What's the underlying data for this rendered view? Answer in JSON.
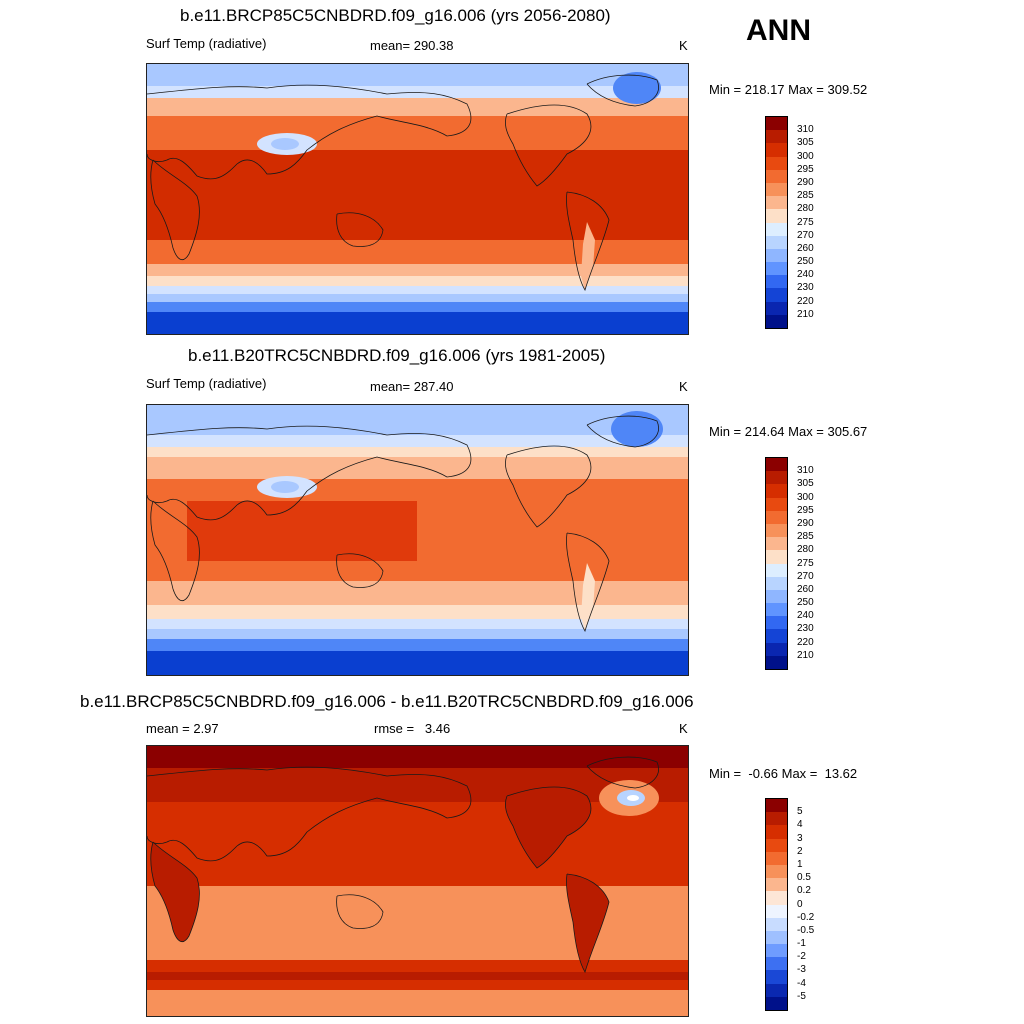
{
  "season": "ANN",
  "panels": [
    {
      "title": "b.e11.BRCP85C5CNBDRD.f09_g16.006 (yrs 2056-2080)",
      "variable": "Surf Temp (radiative)",
      "stat1": "mean= 290.38",
      "stat2": "",
      "units": "K",
      "minmax": "Min = 218.17 Max = 309.52",
      "colorbar": {
        "labels": [
          "310",
          "305",
          "300",
          "295",
          "290",
          "285",
          "280",
          "275",
          "270",
          "260",
          "250",
          "240",
          "230",
          "220",
          "210"
        ],
        "colors": [
          "#8b0000",
          "#b81c00",
          "#d62e00",
          "#e84a10",
          "#f26b30",
          "#f7915a",
          "#fbb68e",
          "#fde0c8",
          "#ddeeff",
          "#b8d4ff",
          "#8fb6ff",
          "#6094ff",
          "#3268f2",
          "#1444d6",
          "#0a26b0",
          "#00118a"
        ]
      }
    },
    {
      "title": "b.e11.B20TRC5CNBDRD.f09_g16.006 (yrs 1981-2005)",
      "variable": "Surf Temp (radiative)",
      "stat1": "mean= 287.40",
      "stat2": "",
      "units": "K",
      "minmax": "Min = 214.64 Max = 305.67",
      "colorbar": {
        "labels": [
          "310",
          "305",
          "300",
          "295",
          "290",
          "285",
          "280",
          "275",
          "270",
          "260",
          "250",
          "240",
          "230",
          "220",
          "210"
        ],
        "colors": [
          "#8b0000",
          "#b81c00",
          "#d62e00",
          "#e84a10",
          "#f26b30",
          "#f7915a",
          "#fbb68e",
          "#fde0c8",
          "#ddeeff",
          "#b8d4ff",
          "#8fb6ff",
          "#6094ff",
          "#3268f2",
          "#1444d6",
          "#0a26b0",
          "#00118a"
        ]
      }
    },
    {
      "title": "b.e11.BRCP85C5CNBDRD.f09_g16.006 - b.e11.B20TRC5CNBDRD.f09_g16.006",
      "variable": "",
      "stat1": "mean =   2.97",
      "stat2": "rmse =   3.46",
      "units": "K",
      "minmax": "Min =  -0.66 Max =  13.62",
      "colorbar": {
        "labels": [
          "5",
          "4",
          "3",
          "2",
          "1",
          "0.5",
          "0.2",
          "0",
          "-0.2",
          "-0.5",
          "-1",
          "-2",
          "-3",
          "-4",
          "-5"
        ],
        "colors": [
          "#8b0000",
          "#b81c00",
          "#d62e00",
          "#e84a10",
          "#f26b30",
          "#f7915a",
          "#fbb68e",
          "#fde6d6",
          "#eef4ff",
          "#c8dcff",
          "#9fc0ff",
          "#6f9cff",
          "#3d70f2",
          "#1a48d6",
          "#0a28b0",
          "#00118a"
        ]
      }
    }
  ],
  "map_colors": {
    "polar_deep": "#0a3fd0",
    "polar": "#4f86f7",
    "cold": "#a9c8ff",
    "cool": "#d3e3ff",
    "mild": "#fde0c8",
    "temperate": "#fbb68e",
    "warm": "#f26b30",
    "hot": "#e03a0c",
    "tropical": "#d22c00",
    "diff_max": "#8b0000",
    "diff_high": "#b81c00",
    "diff_mid": "#d62e00",
    "diff_low": "#f7915a",
    "diff_neg": "#b8d4ff",
    "coast": "#1a1a1a"
  }
}
